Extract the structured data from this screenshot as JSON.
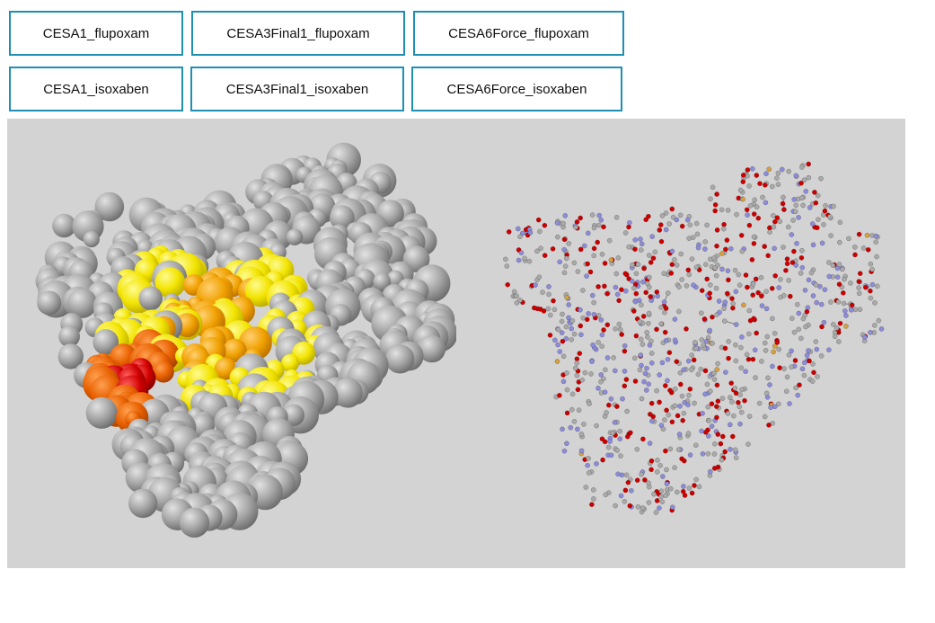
{
  "buttons": [
    {
      "label": "CESA1_flupoxam"
    },
    {
      "label": "CESA3Final1_flupoxam"
    },
    {
      "label": "CESA6Force_flupoxam"
    },
    {
      "label": "CESA1_isoxaben"
    },
    {
      "label": "CESA3Final1_isoxaben"
    },
    {
      "label": "CESA6Force_isoxaben"
    }
  ],
  "viewer": {
    "background": "#d3d3d3",
    "left_panel": {
      "style": "surface",
      "colors": [
        "#9a9a9a",
        "#f2e400",
        "#f0a000",
        "#e86000",
        "#d00000"
      ]
    },
    "right_panel": {
      "style": "ball-and-stick",
      "colors": [
        "#a9a9a9",
        "#8c8cd8",
        "#cc0000",
        "#d4a040"
      ]
    }
  }
}
